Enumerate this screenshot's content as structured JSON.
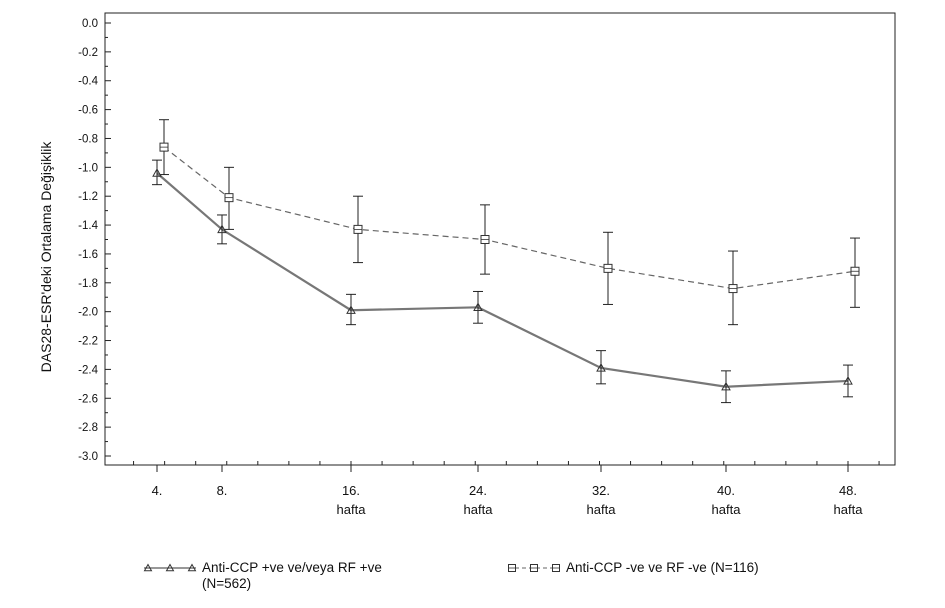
{
  "chart_data": {
    "type": "line",
    "ylabel": "DAS28-ESR'deki Ortalama Değişiklik",
    "xlabel": "",
    "ylim": [
      -3.0,
      0.0
    ],
    "y_ticks": [
      "0.0",
      "-0.2",
      "-0.4",
      "-0.6",
      "-0.8",
      "-1.0",
      "-1.2",
      "-1.4",
      "-1.6",
      "-1.8",
      "-2.0",
      "-2.2",
      "-2.4",
      "-2.6",
      "-2.8",
      "-3.0"
    ],
    "categories": [
      {
        "line1": "4.",
        "line2": ""
      },
      {
        "line1": "8.",
        "line2": ""
      },
      {
        "line1": "16.",
        "line2": "hafta"
      },
      {
        "line1": "24.",
        "line2": "hafta"
      },
      {
        "line1": "32.",
        "line2": "hafta"
      },
      {
        "line1": "40.",
        "line2": "hafta"
      },
      {
        "line1": "48.",
        "line2": "hafta"
      }
    ],
    "x": [
      4,
      8,
      16,
      24,
      32,
      40,
      48
    ],
    "grid": false,
    "legend_position": "bottom",
    "series": [
      {
        "name": "Anti-CCP +ve ve/veya RF +ve",
        "name_line2": "(N=562)",
        "marker": "triangle",
        "line_style": "solid",
        "color": "#555555",
        "values": [
          -1.04,
          -1.43,
          -1.99,
          -1.97,
          -2.39,
          -2.52,
          -2.48
        ],
        "error_lower": [
          -1.12,
          -1.53,
          -2.09,
          -2.08,
          -2.5,
          -2.63,
          -2.59
        ],
        "error_upper": [
          -0.95,
          -1.33,
          -1.88,
          -1.86,
          -2.27,
          -2.41,
          -2.37
        ]
      },
      {
        "name": "Anti-CCP -ve ve RF -ve (N=116)",
        "marker": "square",
        "line_style": "dashed",
        "color": "#555555",
        "values": [
          -0.86,
          -1.21,
          -1.43,
          -1.5,
          -1.7,
          -1.84,
          -1.72
        ],
        "error_lower": [
          -1.05,
          -1.43,
          -1.66,
          -1.74,
          -1.95,
          -2.09,
          -1.97
        ],
        "error_upper": [
          -0.67,
          -1.0,
          -1.2,
          -1.26,
          -1.45,
          -1.58,
          -1.49
        ]
      }
    ]
  }
}
